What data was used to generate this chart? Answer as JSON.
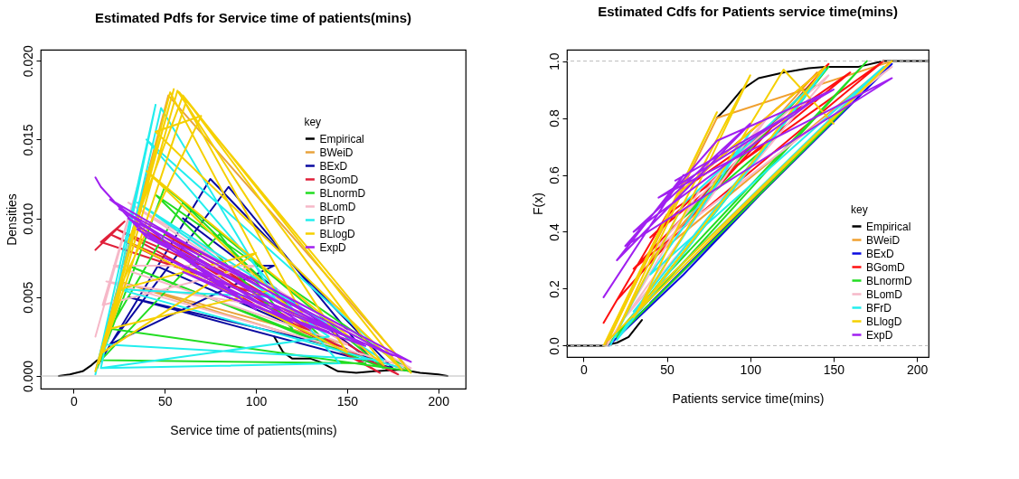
{
  "chart_data": [
    {
      "type": "line",
      "title": "Estimated Pdfs for Service time of patients(mins)",
      "xlabel": "Service time of patients(mins)",
      "ylabel": "Densities",
      "legend_title": "key",
      "legend": "right",
      "grid": false,
      "xlim": [
        -18,
        215
      ],
      "xticks": [
        0,
        50,
        100,
        150,
        200
      ],
      "ylim": [
        -0.0008,
        0.0207
      ],
      "yticks": [
        {
          "value": 0,
          "label": "0.000"
        },
        {
          "value": 0.005,
          "label": "0.005"
        },
        {
          "value": 0.01,
          "label": "0.010"
        },
        {
          "value": 0.015,
          "label": "0.015"
        },
        {
          "value": 0.02,
          "label": "0.020"
        }
      ],
      "ref_lines": [
        {
          "axis": "y",
          "value": 0,
          "color": "#bbbbbb",
          "line_style": "solid"
        }
      ],
      "series": [
        {
          "name": "Empirical",
          "color": "#000000",
          "x": [
            -8,
            -2,
            5,
            10,
            13,
            50,
            110,
            115,
            120,
            130,
            135,
            145,
            155,
            165,
            180,
            190,
            200,
            205
          ],
          "values": [
            0,
            0.0001,
            0.0003,
            0.0007,
            0.001,
            null,
            0.0025,
            0.0015,
            0.0011,
            0.0011,
            0.0009,
            0.0003,
            0.0002,
            0.0003,
            0.0004,
            0.0002,
            0.0001,
            0
          ]
        },
        {
          "name": "BWeiD",
          "color": "#e8a33c",
          "x": [
            12,
            52,
            185,
            25,
            150
          ],
          "values": [
            0.0003,
            0.0178,
            0.0003,
            0.006,
            0.002
          ]
        },
        {
          "name": "BExD",
          "color": "#0a0aa0",
          "x": [
            14,
            75,
            175,
            30,
            150,
            45,
            110,
            20,
            85,
            165,
            60
          ],
          "values": [
            0.0008,
            0.0125,
            0.0005,
            0.005,
            0.0017,
            0.007,
            0.007,
            0.002,
            0.012,
            0.0008,
            0.01
          ]
        },
        {
          "name": "BGomD",
          "color": "#e0203a",
          "x": [
            12,
            28,
            15,
            120,
            24,
            168,
            35,
            140,
            20,
            178,
            50,
            100
          ],
          "values": [
            0.008,
            0.0098,
            0.0085,
            0.0045,
            0.0093,
            0.0002,
            0.0095,
            0.003,
            0.009,
            0.0001,
            0.009,
            0.006
          ]
        },
        {
          "name": "BLnormD",
          "color": "#22dd22",
          "x": [
            13,
            50,
            170,
            30,
            140,
            60,
            20,
            185,
            45,
            120,
            80,
            15,
            160
          ],
          "values": [
            0.0005,
            0.012,
            0.0005,
            0.007,
            0.002,
            0.011,
            0.003,
            0.0003,
            0.0115,
            0.003,
            0.009,
            0.001,
            0.0008
          ]
        },
        {
          "name": "BLomD",
          "color": "#f6b8c8",
          "x": [
            12,
            35,
            16,
            100,
            22,
            150,
            30,
            185,
            18,
            130
          ],
          "values": [
            0.0025,
            0.012,
            0.0045,
            0.007,
            0.007,
            0.002,
            0.011,
            0.0005,
            0.006,
            0.004
          ]
        },
        {
          "name": "BFrD",
          "color": "#22eeee",
          "x": [
            12,
            45,
            15,
            140,
            35,
            170,
            18,
            48,
            110,
            25,
            180,
            40,
            146,
            16
          ],
          "values": [
            0.0001,
            0.0172,
            0.0005,
            0.0025,
            0.011,
            0.001,
            0.002,
            0.017,
            0.005,
            0.0055,
            0.0005,
            0.015,
            0.0008,
            0.0005
          ]
        },
        {
          "name": "BLlogD",
          "color": "#f5d000",
          "x": [
            12,
            55,
            14,
            53,
            110,
            20,
            57,
            150,
            30,
            60,
            180,
            45,
            70,
            25,
            100,
            16,
            62,
            170,
            40,
            130,
            58,
            185
          ],
          "values": [
            0.0003,
            0.0182,
            0.0008,
            0.018,
            0.0055,
            0.003,
            0.0181,
            0.0015,
            0.0085,
            0.0178,
            0.0004,
            0.0155,
            0.0165,
            0.0055,
            0.0078,
            0.0015,
            0.0175,
            0.0007,
            0.013,
            0.003,
            0.018,
            0.0002
          ]
        },
        {
          "name": "ExpD",
          "color": "#a020f0",
          "x": [
            12,
            15,
            40,
            150,
            20,
            100,
            30,
            175,
            50,
            130,
            25,
            185,
            60,
            120,
            35,
            160,
            80,
            140
          ],
          "values": [
            0.0126,
            0.012,
            0.0088,
            0.0025,
            0.0112,
            0.0042,
            0.01,
            0.0013,
            0.0075,
            0.003,
            0.0106,
            0.0009,
            0.0066,
            0.0034,
            0.0093,
            0.0019,
            0.0052,
            0.0028
          ]
        }
      ]
    },
    {
      "type": "line",
      "title": "Estimated Cdfs for Patients service time(mins)",
      "xlabel": "Patients service time(mins)",
      "ylabel": "F(x)",
      "legend_title": "key",
      "legend": "bottom right",
      "grid": false,
      "xlim": [
        -10,
        207
      ],
      "xticks": [
        0,
        50,
        100,
        150,
        200
      ],
      "ylim": [
        -0.04,
        1.04
      ],
      "yticks": [
        {
          "value": 0,
          "label": "0.0"
        },
        {
          "value": 0.2,
          "label": "0.2"
        },
        {
          "value": 0.4,
          "label": "0.4"
        },
        {
          "value": 0.6,
          "label": "0.6"
        },
        {
          "value": 0.8,
          "label": "0.8"
        },
        {
          "value": 1,
          "label": "1.0"
        }
      ],
      "ref_lines": [
        {
          "axis": "y",
          "value": 0,
          "color": "#bbbbbb",
          "line_style": "dashed"
        },
        {
          "axis": "y",
          "value": 1,
          "color": "#bbbbbb",
          "line_style": "dashed"
        }
      ],
      "series": [
        {
          "name": "Empirical",
          "color": "#000000",
          "x": [
            -10,
            12,
            20,
            27,
            35,
            60,
            80,
            85,
            95,
            105,
            120,
            135,
            145,
            165,
            180,
            207
          ],
          "values": [
            0,
            0,
            0.01,
            0.03,
            0.09,
            null,
            0.8,
            0.83,
            0.9,
            0.94,
            0.96,
            0.975,
            0.98,
            0.98,
            1,
            1
          ]
        },
        {
          "name": "BWeiD",
          "color": "#f0a030",
          "x": [
            13,
            80,
            185,
            40,
            140
          ],
          "values": [
            0,
            0.8,
            1,
            0.3,
            0.96
          ]
        },
        {
          "name": "BExD",
          "color": "#0a0ae0",
          "x": [
            15,
            60,
            150,
            40,
            100,
            185,
            30
          ],
          "values": [
            0,
            0.25,
            0.8,
            0.15,
            0.5,
            0.99,
            0.09
          ]
        },
        {
          "name": "BGomD",
          "color": "#ff1010",
          "x": [
            12,
            50,
            180,
            30,
            120,
            40,
            160,
            60,
            147,
            20
          ],
          "values": [
            0.08,
            0.46,
            1,
            0.27,
            0.82,
            0.38,
            0.96,
            0.55,
            0.99,
            0.16
          ]
        },
        {
          "name": "BLnormD",
          "color": "#22dd22",
          "x": [
            14,
            50,
            170,
            30,
            110,
            60,
            147,
            20,
            160
          ],
          "values": [
            0,
            0.25,
            1,
            0.1,
            0.7,
            0.45,
            0.98,
            0.03,
            0.85
          ]
        },
        {
          "name": "BLomD",
          "color": "#f6b8c8",
          "x": [
            14,
            70,
            147,
            25,
            110,
            45,
            185
          ],
          "values": [
            0,
            0.55,
            0.95,
            0.1,
            0.8,
            0.35,
            0.98
          ]
        },
        {
          "name": "BFrD",
          "color": "#22eeee",
          "x": [
            16,
            60,
            140,
            20,
            100,
            40,
            180,
            30,
            145
          ],
          "values": [
            0,
            0.5,
            0.93,
            0.02,
            0.75,
            0.25,
            0.98,
            0.12,
            0.97
          ]
        },
        {
          "name": "BLlogD",
          "color": "#f5d000",
          "x": [
            12,
            80,
            15,
            185,
            35,
            100,
            20,
            60,
            145,
            30,
            120,
            150
          ],
          "values": [
            0,
            0.82,
            0.02,
            1,
            0.15,
            0.95,
            0.05,
            0.55,
            0.98,
            0.1,
            0.97,
            0.78
          ]
        },
        {
          "name": "ExpD",
          "color": "#a020f0",
          "x": [
            12,
            60,
            20,
            100,
            30,
            140,
            45,
            185,
            25,
            80,
            150,
            55
          ],
          "values": [
            0.17,
            0.6,
            0.3,
            0.78,
            0.4,
            0.87,
            0.52,
            0.94,
            0.35,
            0.72,
            0.9,
            0.58
          ]
        }
      ]
    }
  ]
}
